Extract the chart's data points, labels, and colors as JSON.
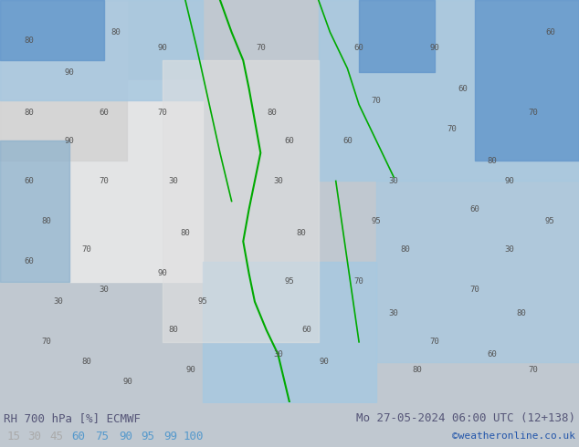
{
  "title_left": "RH 700 hPa [%] ECMWF",
  "title_right": "Mo 27-05-2024 06:00 UTC (12+138)",
  "copyright": "©weatheronline.co.uk",
  "legend_values": [
    15,
    30,
    45,
    60,
    75,
    90,
    95,
    99,
    100
  ],
  "legend_colors": [
    "#ffffff",
    "#d3d3d3",
    "#b0b0b0",
    "#87ceeb",
    "#4da6ff",
    "#1e90ff",
    "#0000cd",
    "#006400",
    "#00aa00"
  ],
  "legend_text_colors": [
    "#aaaaaa",
    "#aaaaaa",
    "#aaaaaa",
    "#5599cc",
    "#5599cc",
    "#5599cc",
    "#5599cc",
    "#5599cc",
    "#5599cc"
  ],
  "bg_color": "#c8d8e8",
  "map_bg": "#c8c8c8",
  "fig_width": 6.34,
  "fig_height": 4.9,
  "dpi": 100,
  "bottom_bar_height": 0.1,
  "label_fontsize": 9,
  "title_fontsize": 9
}
